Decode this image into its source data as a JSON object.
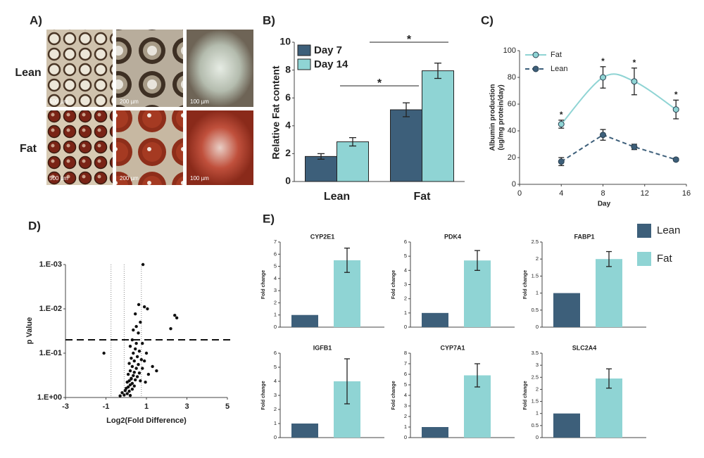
{
  "panel_labels": [
    "A)",
    "B)",
    "C)",
    "D)",
    "E)"
  ],
  "micrographs": {
    "rows": [
      "Lean",
      "Fat"
    ],
    "scale_labels": [
      "500 µm",
      "200 µm",
      "100 µm"
    ]
  },
  "e_legend": {
    "series": [
      {
        "name": "Lean",
        "color": "#3d5f7a"
      },
      {
        "name": "Fat",
        "color": "#8fd4d4"
      }
    ]
  },
  "chart_data": [
    {
      "type": "bar",
      "ylabel": "Relative Fat content",
      "categories": [
        "Lean",
        "Fat"
      ],
      "series": [
        {
          "name": "Day 7",
          "color": "#3d5f7a",
          "values": [
            1.8,
            5.15
          ],
          "errors": [
            0.2,
            0.5
          ]
        },
        {
          "name": "Day 14",
          "color": "#8fd4d4",
          "values": [
            2.85,
            7.95
          ],
          "errors": [
            0.3,
            0.55
          ]
        }
      ],
      "ylim": [
        0,
        10
      ],
      "yticks": [
        0,
        2,
        4,
        6,
        8,
        10
      ],
      "legend": "upper left",
      "annotations": [
        "*",
        "*"
      ]
    },
    {
      "type": "line",
      "xlabel": "Day",
      "ylabel": [
        "Albumin production",
        "(ug/mg protein/day)"
      ],
      "x": [
        4,
        8,
        11,
        15
      ],
      "series": [
        {
          "name": "Fat",
          "color": "#8fd4d4",
          "line_style": "solid",
          "smooth": true,
          "values": [
            45,
            80,
            77,
            56
          ],
          "errors": [
            3,
            8,
            10,
            7
          ],
          "annotations": [
            "*",
            "*",
            "*",
            "*"
          ]
        },
        {
          "name": "Lean",
          "color": "#3d5f7a",
          "line_style": "dashed",
          "smooth": false,
          "values": [
            17,
            37,
            28,
            18.5
          ],
          "errors": [
            3,
            4,
            2,
            1
          ]
        }
      ],
      "xlim": [
        0,
        16
      ],
      "xticks": [
        0,
        4,
        8,
        12,
        16
      ],
      "ylim": [
        0,
        100
      ],
      "yticks": [
        0,
        20,
        40,
        60,
        80,
        100
      ],
      "legend": "upper left"
    },
    {
      "type": "scatter",
      "xlabel": "Log2(Fold Difference)",
      "ylabel": "p Value",
      "ylog": true,
      "color": "#111111",
      "x": [
        0.83,
        0.62,
        0.9,
        1.05,
        0.45,
        0.7,
        0.5,
        0.35,
        0.6,
        2.4,
        2.5,
        2.2,
        -1.1,
        0.3,
        0.5,
        0.8,
        0.2,
        0.45,
        0.65,
        1.0,
        0.35,
        0.55,
        0.25,
        0.75,
        0.4,
        0.9,
        0.15,
        0.6,
        1.3,
        0.3,
        0.5,
        0.8,
        0.2,
        0.4,
        0.65,
        0.1,
        0.35,
        0.55,
        0.25,
        0.45,
        0.15,
        0.7,
        0.05,
        0.3,
        0.2,
        0.4,
        0.1,
        0.0,
        0.3,
        -0.05,
        0.15,
        -0.2,
        0.05,
        -0.1,
        0.2,
        -0.3,
        0.25,
        1.1,
        1.5,
        0.95
      ],
      "values": [
        0.001,
        0.008,
        0.009,
        0.01,
        0.013,
        0.02,
        0.025,
        0.03,
        0.035,
        0.014,
        0.016,
        0.028,
        0.1,
        0.05,
        0.06,
        0.06,
        0.07,
        0.08,
        0.09,
        0.1,
        0.1,
        0.12,
        0.13,
        0.14,
        0.15,
        0.15,
        0.17,
        0.18,
        0.2,
        0.2,
        0.22,
        0.22,
        0.25,
        0.27,
        0.28,
        0.3,
        0.32,
        0.34,
        0.37,
        0.4,
        0.42,
        0.42,
        0.45,
        0.48,
        0.52,
        0.55,
        0.58,
        0.62,
        0.65,
        0.7,
        0.72,
        0.78,
        0.82,
        0.88,
        0.9,
        0.92,
        0.38,
        0.3,
        0.25,
        0.45
      ],
      "hlines": [
        0.05
      ],
      "vlines": [
        -0.75,
        -0.1,
        0.75
      ],
      "xlim": [
        -3,
        5
      ],
      "xticks": [
        -3,
        -1,
        1,
        3,
        5
      ],
      "ylim": [
        1,
        0.001
      ],
      "yticks": [
        {
          "value": 0.001,
          "label": "1.E-03"
        },
        {
          "value": 0.01,
          "label": "1.E-02"
        },
        {
          "value": 0.1,
          "label": "1.E-01"
        },
        {
          "value": 1,
          "label": "1.E+00"
        }
      ]
    },
    {
      "type": "bar",
      "title": "CYP2E1",
      "ylabel": "Fold change",
      "values": [
        1,
        5.5
      ],
      "errors": [
        null,
        1.0
      ],
      "ylim": [
        0,
        7
      ],
      "yticks": [
        0,
        1,
        2,
        3,
        4,
        5,
        6,
        7
      ]
    },
    {
      "type": "bar",
      "title": "PDK4",
      "ylabel": "Fold change",
      "values": [
        1,
        4.7
      ],
      "errors": [
        null,
        0.7
      ],
      "ylim": [
        0,
        6
      ],
      "yticks": [
        0,
        1,
        2,
        3,
        4,
        5,
        6
      ]
    },
    {
      "type": "bar",
      "title": "FABP1",
      "ylabel": "Fold change",
      "values": [
        1,
        2.0
      ],
      "errors": [
        null,
        0.22
      ],
      "ylim": [
        0,
        2.5
      ],
      "yticks": [
        0,
        0.5,
        1,
        1.5,
        2,
        2.5
      ]
    },
    {
      "type": "bar",
      "title": "IGFB1",
      "ylabel": "Fold change",
      "values": [
        1,
        4.0
      ],
      "errors": [
        null,
        1.6
      ],
      "ylim": [
        0,
        6
      ],
      "yticks": [
        0,
        1,
        2,
        3,
        4,
        5,
        6
      ]
    },
    {
      "type": "bar",
      "title": "CYP7A1",
      "ylabel": "Fold change",
      "values": [
        1,
        5.9
      ],
      "errors": [
        null,
        1.1
      ],
      "ylim": [
        0,
        8
      ],
      "yticks": [
        0,
        1,
        2,
        3,
        4,
        5,
        6,
        7,
        8
      ]
    },
    {
      "type": "bar",
      "title": "SLC2A4",
      "ylabel": "Fold change",
      "values": [
        1,
        2.45
      ],
      "errors": [
        null,
        0.4
      ],
      "ylim": [
        0,
        3.5
      ],
      "yticks": [
        0,
        0.5,
        1,
        1.5,
        2,
        2.5,
        3,
        3.5
      ]
    }
  ]
}
